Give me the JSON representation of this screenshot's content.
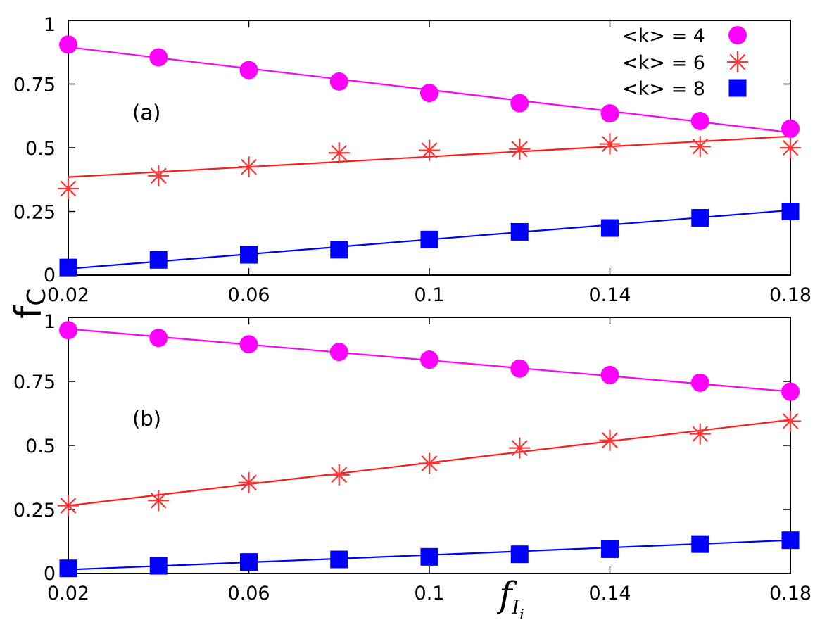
{
  "chart_data": [
    {
      "type": "line",
      "panel_label": "(a)",
      "x": [
        0.02,
        0.04,
        0.06,
        0.08,
        0.1,
        0.12,
        0.14,
        0.16,
        0.18
      ],
      "xlim": [
        0.02,
        0.18
      ],
      "ylim": [
        0,
        1
      ],
      "xticks": [
        "0.02",
        "0.06",
        "0.1",
        "0.14",
        "0.18"
      ],
      "xtick_values": [
        0.02,
        0.06,
        0.1,
        0.14,
        0.18
      ],
      "yticks": [
        "0",
        "0.25",
        "0.5",
        "0.75",
        "1"
      ],
      "ytick_values": [
        0,
        0.25,
        0.5,
        0.75,
        1
      ],
      "legend_position": "top-right",
      "series": [
        {
          "name": "<k> = 4",
          "marker": "circle",
          "color": "#ff00ff",
          "values": [
            0.905,
            0.855,
            0.805,
            0.76,
            0.715,
            0.675,
            0.635,
            0.605,
            0.575
          ],
          "fit": [
            0.895,
            0.56
          ]
        },
        {
          "name": "<k> = 6",
          "marker": "asterisk",
          "color": "#ff3333",
          "line_color": "#ff1a1a",
          "values": [
            0.34,
            0.39,
            0.425,
            0.48,
            0.49,
            0.495,
            0.515,
            0.505,
            0.5
          ],
          "fit": [
            0.385,
            0.545
          ]
        },
        {
          "name": "<k> = 8",
          "marker": "square",
          "color": "#0000ff",
          "values": [
            0.03,
            0.06,
            0.08,
            0.1,
            0.14,
            0.17,
            0.185,
            0.225,
            0.25
          ],
          "fit": [
            0.025,
            0.255
          ]
        }
      ]
    },
    {
      "type": "line",
      "panel_label": "(b)",
      "x": [
        0.02,
        0.04,
        0.06,
        0.08,
        0.1,
        0.12,
        0.14,
        0.16,
        0.18
      ],
      "xlim": [
        0.02,
        0.18
      ],
      "ylim": [
        0,
        1
      ],
      "xticks": [
        "0.02",
        "0.06",
        "0.1",
        "0.14",
        "0.18"
      ],
      "xtick_values": [
        0.02,
        0.06,
        0.1,
        0.14,
        0.18
      ],
      "yticks": [
        "0",
        "0.25",
        "0.5",
        "0.75",
        "1"
      ],
      "ytick_values": [
        0,
        0.25,
        0.5,
        0.75,
        1
      ],
      "series": [
        {
          "name": "<k> = 4",
          "marker": "circle",
          "color": "#ff00ff",
          "values": [
            0.95,
            0.92,
            0.895,
            0.865,
            0.835,
            0.8,
            0.775,
            0.745,
            0.71
          ],
          "fit": [
            0.955,
            0.71
          ]
        },
        {
          "name": "<k> = 6",
          "marker": "asterisk",
          "color": "#ff3333",
          "line_color": "#ff1a1a",
          "values": [
            0.265,
            0.285,
            0.355,
            0.385,
            0.43,
            0.49,
            0.52,
            0.545,
            0.595
          ],
          "fit": [
            0.265,
            0.6
          ]
        },
        {
          "name": "<k> = 8",
          "marker": "square",
          "color": "#0000ff",
          "values": [
            0.02,
            0.03,
            0.045,
            0.055,
            0.065,
            0.075,
            0.095,
            0.115,
            0.13
          ],
          "fit": [
            0.015,
            0.13
          ]
        }
      ]
    }
  ],
  "ylabel": {
    "main": "f",
    "sub": "C"
  },
  "xlabel": {
    "main": "f",
    "sub": "I",
    "subsub": "i"
  }
}
